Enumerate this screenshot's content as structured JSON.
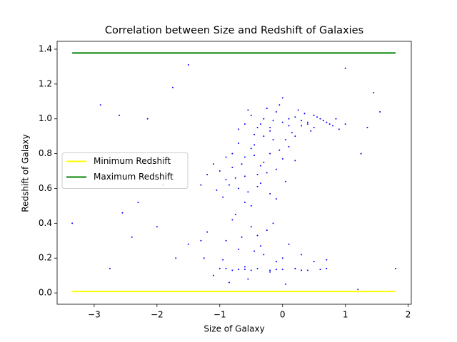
{
  "chart_data": {
    "type": "scatter",
    "title": "Correlation between Size and Redshift of Galaxies",
    "x_label": "Size of Galaxy",
    "y_label": "Redshift of Galaxy",
    "xlim": [
      -3.59,
      2.05
    ],
    "ylim": [
      -0.065,
      1.445
    ],
    "xticks": [
      {
        "value": -3,
        "label": "−3"
      },
      {
        "value": -2,
        "label": "−2"
      },
      {
        "value": -1,
        "label": "−1"
      },
      0,
      1,
      2
    ],
    "yticks": [
      {
        "value": 0,
        "label": "0.0"
      },
      0.2,
      0.4,
      0.6,
      0.8,
      {
        "value": 1,
        "label": "1.0"
      },
      1.2,
      1.4
    ],
    "legend": "center left",
    "points": {
      "color": "#0000ff",
      "x": [
        -0.6,
        -0.5,
        -0.4,
        -0.3,
        -0.2,
        -0.1,
        0.0,
        0.1,
        0.2,
        0.3,
        0.4,
        0.5,
        0.6,
        0.7,
        0.8,
        0.9,
        -0.45,
        -0.25,
        -0.05,
        0.15,
        0.35,
        0.55,
        0.75,
        0.05,
        -0.15,
        0.25,
        0.45,
        0.65,
        -0.35,
        0.0,
        0.1,
        -0.2,
        0.3,
        0.5,
        -0.55,
        0.85,
        1.0,
        -0.7,
        0.2,
        0.4,
        -1.0,
        -0.9,
        -0.8,
        -0.7,
        -0.6,
        -0.5,
        -0.4,
        -0.3,
        -0.2,
        -0.1,
        0.0,
        -0.95,
        -0.85,
        -0.75,
        -0.65,
        -0.55,
        -0.45,
        -0.35,
        -0.25,
        -0.15,
        -0.05,
        -1.1,
        -1.2,
        -0.6,
        -0.3,
        -0.8,
        -0.5,
        -0.2,
        -0.4,
        -0.7,
        0.1,
        0.2,
        -1.3,
        -0.9,
        -0.1,
        -0.6,
        -0.35,
        -1.05,
        -0.45,
        0.05,
        -0.9,
        -0.7,
        -0.5,
        -0.3,
        -0.1,
        0.1,
        -0.8,
        -0.6,
        -0.4,
        -0.2,
        0.0,
        -1.2,
        -1.5,
        -0.95,
        -0.75,
        -0.55,
        -0.35,
        -0.15,
        0.05,
        0.3,
        -1.7,
        -1.1,
        -0.65,
        -0.25,
        0.5,
        -0.45,
        -0.85,
        0.2,
        -1.3,
        0.7,
        -1.0,
        -0.8,
        -0.6,
        -0.4,
        -0.2,
        0.0,
        0.2,
        0.4,
        0.6,
        -0.9,
        -0.5,
        -0.1,
        0.3,
        0.7,
        -0.7,
        -3.35,
        -2.9,
        -2.75,
        -2.6,
        -2.4,
        -2.3,
        -2.15,
        -1.75,
        -1.5,
        -1.25,
        1.0,
        1.25,
        1.45,
        1.55,
        1.8,
        -1.9,
        -2.0,
        1.2,
        -2.55,
        1.35
      ],
      "values": [
        0.97,
        1.02,
        0.95,
        1.0,
        0.93,
        1.04,
        0.98,
        0.96,
        1.01,
        0.99,
        0.97,
        0.95,
        1.0,
        0.98,
        0.96,
        0.94,
        0.91,
        1.06,
        1.08,
        0.92,
        1.03,
        1.01,
        0.97,
        0.88,
        0.99,
        1.05,
        0.93,
        0.99,
        0.97,
        1.12,
        1.0,
        0.95,
        0.96,
        1.02,
        1.05,
        1.0,
        0.97,
        0.94,
        0.9,
        0.98,
        0.7,
        0.65,
        0.72,
        0.6,
        0.78,
        0.83,
        0.68,
        0.75,
        0.8,
        0.71,
        0.77,
        0.55,
        0.62,
        0.66,
        0.74,
        0.58,
        0.85,
        0.63,
        0.69,
        0.88,
        0.82,
        0.74,
        0.68,
        0.52,
        0.9,
        0.8,
        0.5,
        0.57,
        0.61,
        0.86,
        0.84,
        0.76,
        0.62,
        0.78,
        0.54,
        0.67,
        0.73,
        0.59,
        0.79,
        0.64,
        0.3,
        0.25,
        0.38,
        0.22,
        0.18,
        0.28,
        0.42,
        0.15,
        0.33,
        0.12,
        0.2,
        0.35,
        0.28,
        0.19,
        0.45,
        0.08,
        0.27,
        0.4,
        0.05,
        0.22,
        0.2,
        0.1,
        0.32,
        0.36,
        0.18,
        0.24,
        0.06,
        0.14,
        0.3,
        0.19,
        0.14,
        0.13,
        0.135,
        0.14,
        0.13,
        0.135,
        0.14,
        0.13,
        0.135,
        0.14,
        0.13,
        0.135,
        0.13,
        0.14,
        0.135,
        0.4,
        1.08,
        0.14,
        1.02,
        0.32,
        0.52,
        1.0,
        1.18,
        1.31,
        0.2,
        1.29,
        0.8,
        1.15,
        1.04,
        0.14,
        0.62,
        0.38,
        0.02,
        0.46,
        0.95
      ]
    },
    "series": [
      {
        "name": "Minimum Redshift",
        "color": "#ffff00",
        "x": [
          -3.35,
          1.8
        ],
        "values": [
          0.008,
          0.008
        ]
      },
      {
        "name": "Maximum Redshift",
        "color": "#008000",
        "x": [
          -3.35,
          1.8
        ],
        "values": [
          1.378,
          1.378
        ]
      }
    ]
  }
}
